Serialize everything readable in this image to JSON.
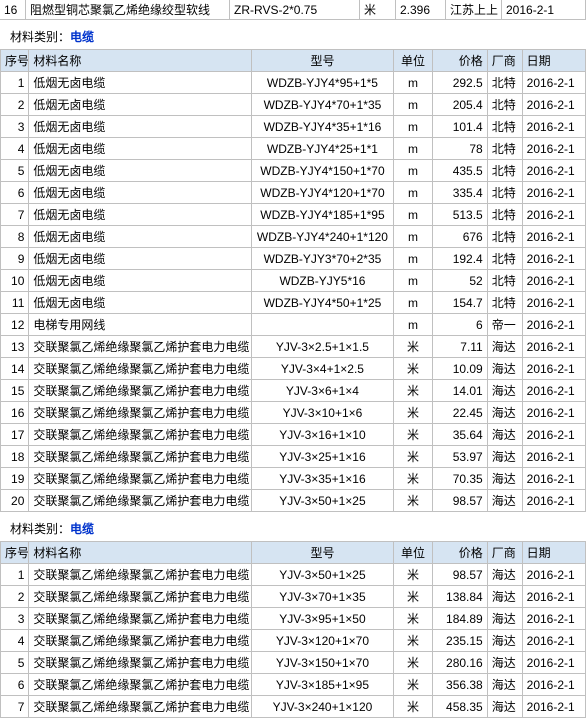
{
  "top_row": {
    "idx": "16",
    "name": "阻燃型铜芯聚氯乙烯绝缘绞型软线",
    "model": "ZR-RVS-2*0.75",
    "unit": "米",
    "price": "2.396",
    "vendor": "江苏上上",
    "date": "2016-2-1"
  },
  "category_label": "材料类别：",
  "category_value": "电缆",
  "headers": {
    "idx": "序号",
    "name": "材料名称",
    "model": "型号",
    "unit": "单位",
    "price": "价格",
    "vendor": "厂商",
    "date": "日期"
  },
  "table1": [
    {
      "idx": "1",
      "name": "低烟无卤电缆",
      "model": "WDZB-YJY4*95+1*5",
      "unit": "m",
      "price": "292.5",
      "vendor": "北特",
      "date": "2016-2-1"
    },
    {
      "idx": "2",
      "name": "低烟无卤电缆",
      "model": "WDZB-YJY4*70+1*35",
      "unit": "m",
      "price": "205.4",
      "vendor": "北特",
      "date": "2016-2-1"
    },
    {
      "idx": "3",
      "name": "低烟无卤电缆",
      "model": "WDZB-YJY4*35+1*16",
      "unit": "m",
      "price": "101.4",
      "vendor": "北特",
      "date": "2016-2-1"
    },
    {
      "idx": "4",
      "name": "低烟无卤电缆",
      "model": "WDZB-YJY4*25+1*1",
      "unit": "m",
      "price": "78",
      "vendor": "北特",
      "date": "2016-2-1"
    },
    {
      "idx": "5",
      "name": "低烟无卤电缆",
      "model": "WDZB-YJY4*150+1*70",
      "unit": "m",
      "price": "435.5",
      "vendor": "北特",
      "date": "2016-2-1"
    },
    {
      "idx": "6",
      "name": "低烟无卤电缆",
      "model": "WDZB-YJY4*120+1*70",
      "unit": "m",
      "price": "335.4",
      "vendor": "北特",
      "date": "2016-2-1"
    },
    {
      "idx": "7",
      "name": "低烟无卤电缆",
      "model": "WDZB-YJY4*185+1*95",
      "unit": "m",
      "price": "513.5",
      "vendor": "北特",
      "date": "2016-2-1"
    },
    {
      "idx": "8",
      "name": "低烟无卤电缆",
      "model": "WDZB-YJY4*240+1*120",
      "unit": "m",
      "price": "676",
      "vendor": "北特",
      "date": "2016-2-1"
    },
    {
      "idx": "9",
      "name": "低烟无卤电缆",
      "model": "WDZB-YJY3*70+2*35",
      "unit": "m",
      "price": "192.4",
      "vendor": "北特",
      "date": "2016-2-1"
    },
    {
      "idx": "10",
      "name": "低烟无卤电缆",
      "model": "WDZB-YJY5*16",
      "unit": "m",
      "price": "52",
      "vendor": "北特",
      "date": "2016-2-1"
    },
    {
      "idx": "11",
      "name": "低烟无卤电缆",
      "model": "WDZB-YJY4*50+1*25",
      "unit": "m",
      "price": "154.7",
      "vendor": "北特",
      "date": "2016-2-1"
    },
    {
      "idx": "12",
      "name": "电梯专用网线",
      "model": "",
      "unit": "m",
      "price": "6",
      "vendor": "帝一",
      "date": "2016-2-1"
    },
    {
      "idx": "13",
      "name": "交联聚氯乙烯绝缘聚氯乙烯护套电力电缆",
      "model": "YJV-3×2.5+1×1.5",
      "unit": "米",
      "price": "7.11",
      "vendor": "海达",
      "date": "2016-2-1"
    },
    {
      "idx": "14",
      "name": "交联聚氯乙烯绝缘聚氯乙烯护套电力电缆",
      "model": "YJV-3×4+1×2.5",
      "unit": "米",
      "price": "10.09",
      "vendor": "海达",
      "date": "2016-2-1"
    },
    {
      "idx": "15",
      "name": "交联聚氯乙烯绝缘聚氯乙烯护套电力电缆",
      "model": "YJV-3×6+1×4",
      "unit": "米",
      "price": "14.01",
      "vendor": "海达",
      "date": "2016-2-1"
    },
    {
      "idx": "16",
      "name": "交联聚氯乙烯绝缘聚氯乙烯护套电力电缆",
      "model": "YJV-3×10+1×6",
      "unit": "米",
      "price": "22.45",
      "vendor": "海达",
      "date": "2016-2-1"
    },
    {
      "idx": "17",
      "name": "交联聚氯乙烯绝缘聚氯乙烯护套电力电缆",
      "model": "YJV-3×16+1×10",
      "unit": "米",
      "price": "35.64",
      "vendor": "海达",
      "date": "2016-2-1"
    },
    {
      "idx": "18",
      "name": "交联聚氯乙烯绝缘聚氯乙烯护套电力电缆",
      "model": "YJV-3×25+1×16",
      "unit": "米",
      "price": "53.97",
      "vendor": "海达",
      "date": "2016-2-1"
    },
    {
      "idx": "19",
      "name": "交联聚氯乙烯绝缘聚氯乙烯护套电力电缆",
      "model": "YJV-3×35+1×16",
      "unit": "米",
      "price": "70.35",
      "vendor": "海达",
      "date": "2016-2-1"
    },
    {
      "idx": "20",
      "name": "交联聚氯乙烯绝缘聚氯乙烯护套电力电缆",
      "model": "YJV-3×50+1×25",
      "unit": "米",
      "price": "98.57",
      "vendor": "海达",
      "date": "2016-2-1"
    }
  ],
  "table2": [
    {
      "idx": "1",
      "name": "交联聚氯乙烯绝缘聚氯乙烯护套电力电缆",
      "model": "YJV-3×50+1×25",
      "unit": "米",
      "price": "98.57",
      "vendor": "海达",
      "date": "2016-2-1"
    },
    {
      "idx": "2",
      "name": "交联聚氯乙烯绝缘聚氯乙烯护套电力电缆",
      "model": "YJV-3×70+1×35",
      "unit": "米",
      "price": "138.84",
      "vendor": "海达",
      "date": "2016-2-1"
    },
    {
      "idx": "3",
      "name": "交联聚氯乙烯绝缘聚氯乙烯护套电力电缆",
      "model": "YJV-3×95+1×50",
      "unit": "米",
      "price": "184.89",
      "vendor": "海达",
      "date": "2016-2-1"
    },
    {
      "idx": "4",
      "name": "交联聚氯乙烯绝缘聚氯乙烯护套电力电缆",
      "model": "YJV-3×120+1×70",
      "unit": "米",
      "price": "235.15",
      "vendor": "海达",
      "date": "2016-2-1"
    },
    {
      "idx": "5",
      "name": "交联聚氯乙烯绝缘聚氯乙烯护套电力电缆",
      "model": "YJV-3×150+1×70",
      "unit": "米",
      "price": "280.16",
      "vendor": "海达",
      "date": "2016-2-1"
    },
    {
      "idx": "6",
      "name": "交联聚氯乙烯绝缘聚氯乙烯护套电力电缆",
      "model": "YJV-3×185+1×95",
      "unit": "米",
      "price": "356.38",
      "vendor": "海达",
      "date": "2016-2-1"
    },
    {
      "idx": "7",
      "name": "交联聚氯乙烯绝缘聚氯乙烯护套电力电缆",
      "model": "YJV-3×240+1×120",
      "unit": "米",
      "price": "458.35",
      "vendor": "海达",
      "date": "2016-2-1"
    }
  ]
}
